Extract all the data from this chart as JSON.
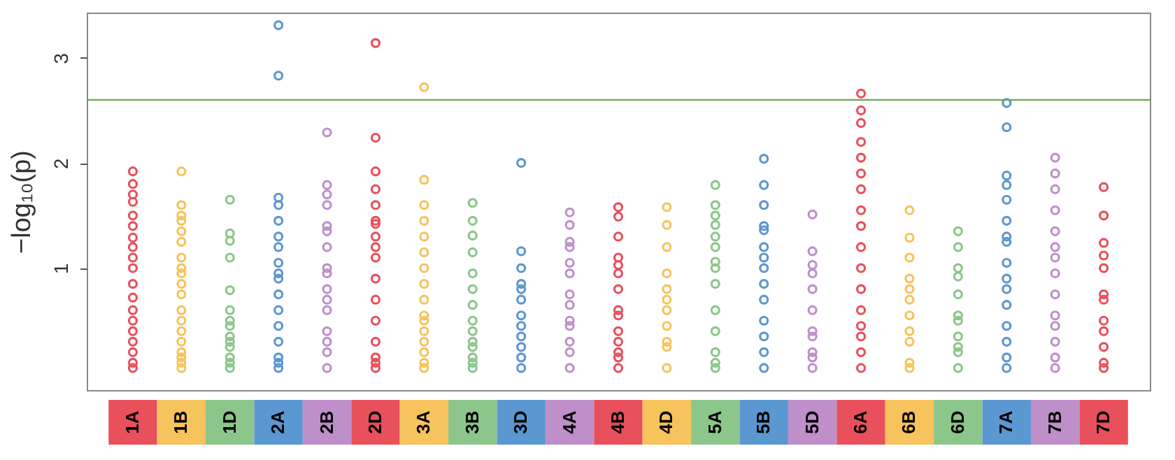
{
  "chart_data": {
    "type": "scatter",
    "ylabel": "−log₁₀(p)",
    "marker": "circle",
    "ylim": [
      -0.16,
      3.43
    ],
    "yticks": [
      1,
      2,
      3
    ],
    "categories": [
      "1A",
      "1B",
      "1D",
      "2A",
      "2B",
      "2D",
      "3A",
      "3B",
      "3D",
      "4A",
      "4B",
      "4D",
      "5A",
      "5B",
      "5D",
      "6A",
      "6B",
      "6D",
      "7A",
      "7B",
      "7D"
    ],
    "ref_lines": [
      {
        "axis": "y",
        "value": 2.6,
        "color": "#6aa84f"
      }
    ],
    "series": [
      {
        "color": "#e8505b",
        "x": [
          "1A",
          "1A",
          "1A",
          "1A",
          "1A",
          "1A",
          "1A",
          "1A",
          "1A",
          "1A",
          "1A",
          "1A",
          "1A",
          "1A",
          "1A",
          "1A",
          "1A",
          "1A",
          "1A"
        ],
        "values": [
          1.92,
          1.8,
          1.7,
          1.63,
          1.5,
          1.4,
          1.29,
          1.2,
          1.1,
          1.0,
          0.85,
          0.72,
          0.6,
          0.5,
          0.4,
          0.3,
          0.2,
          0.1,
          0.05
        ]
      },
      {
        "color": "#f7c35c",
        "x": [
          "1B",
          "1B",
          "1B",
          "1B",
          "1B",
          "1B",
          "1B",
          "1B",
          "1B",
          "1B",
          "1B",
          "1B",
          "1B",
          "1B",
          "1B",
          "1B",
          "1B",
          "1B",
          "1B"
        ],
        "values": [
          1.92,
          1.6,
          1.5,
          1.45,
          1.35,
          1.25,
          1.1,
          1.0,
          0.95,
          0.85,
          0.75,
          0.6,
          0.5,
          0.4,
          0.3,
          0.2,
          0.15,
          0.1,
          0.05
        ]
      },
      {
        "color": "#8cc68a",
        "x": [
          "1D",
          "1D",
          "1D",
          "1D",
          "1D",
          "1D",
          "1D",
          "1D",
          "1D",
          "1D",
          "1D",
          "1D",
          "1D",
          "1D"
        ],
        "values": [
          1.65,
          1.33,
          1.26,
          1.1,
          0.79,
          0.6,
          0.5,
          0.45,
          0.35,
          0.3,
          0.25,
          0.15,
          0.1,
          0.05
        ]
      },
      {
        "color": "#5b97d1",
        "x": [
          "2A",
          "2A",
          "2A",
          "2A",
          "2A",
          "2A",
          "2A",
          "2A",
          "2A",
          "2A",
          "2A",
          "2A",
          "2A",
          "2A",
          "2A",
          "2A",
          "2A"
        ],
        "values": [
          3.31,
          2.83,
          1.67,
          1.6,
          1.45,
          1.3,
          1.2,
          1.05,
          0.95,
          0.9,
          0.75,
          0.6,
          0.45,
          0.3,
          0.15,
          0.1,
          0.05
        ]
      },
      {
        "color": "#bf8fc9",
        "x": [
          "2B",
          "2B",
          "2B",
          "2B",
          "2B",
          "2B",
          "2B",
          "2B",
          "2B",
          "2B",
          "2B",
          "2B",
          "2B",
          "2B",
          "2B",
          "2B"
        ],
        "values": [
          2.29,
          1.79,
          1.7,
          1.6,
          1.4,
          1.35,
          1.2,
          1.0,
          0.95,
          0.8,
          0.7,
          0.6,
          0.4,
          0.3,
          0.2,
          0.05
        ]
      },
      {
        "color": "#e8505b",
        "x": [
          "2D",
          "2D",
          "2D",
          "2D",
          "2D",
          "2D",
          "2D",
          "2D",
          "2D",
          "2D",
          "2D",
          "2D",
          "2D",
          "2D",
          "2D",
          "2D",
          "2D"
        ],
        "values": [
          3.14,
          2.24,
          1.92,
          1.75,
          1.6,
          1.45,
          1.42,
          1.3,
          1.2,
          1.1,
          0.9,
          0.7,
          0.5,
          0.3,
          0.15,
          0.1,
          0.05
        ]
      },
      {
        "color": "#f7c35c",
        "x": [
          "3A",
          "3A",
          "3A",
          "3A",
          "3A",
          "3A",
          "3A",
          "3A",
          "3A",
          "3A",
          "3A",
          "3A",
          "3A",
          "3A",
          "3A",
          "3A"
        ],
        "values": [
          2.72,
          1.84,
          1.6,
          1.45,
          1.3,
          1.15,
          1.0,
          0.85,
          0.7,
          0.55,
          0.5,
          0.4,
          0.3,
          0.2,
          0.1,
          0.05
        ]
      },
      {
        "color": "#8cc68a",
        "x": [
          "3B",
          "3B",
          "3B",
          "3B",
          "3B",
          "3B",
          "3B",
          "3B",
          "3B",
          "3B",
          "3B",
          "3B",
          "3B",
          "3B"
        ],
        "values": [
          1.62,
          1.45,
          1.31,
          1.15,
          0.95,
          0.8,
          0.65,
          0.5,
          0.4,
          0.3,
          0.25,
          0.15,
          0.1,
          0.05
        ]
      },
      {
        "color": "#5b97d1",
        "x": [
          "3D",
          "3D",
          "3D",
          "3D",
          "3D",
          "3D",
          "3D",
          "3D",
          "3D",
          "3D",
          "3D",
          "3D"
        ],
        "values": [
          2.0,
          1.16,
          1.0,
          0.85,
          0.7,
          0.55,
          0.45,
          0.35,
          0.25,
          0.15,
          0.05,
          0.8
        ]
      },
      {
        "color": "#bf8fc9",
        "x": [
          "4A",
          "4A",
          "4A",
          "4A",
          "4A",
          "4A",
          "4A",
          "4A",
          "4A",
          "4A",
          "4A",
          "4A",
          "4A"
        ],
        "values": [
          1.53,
          1.41,
          1.25,
          1.2,
          1.05,
          0.95,
          0.75,
          0.65,
          0.5,
          0.45,
          0.3,
          0.2,
          0.05
        ]
      },
      {
        "color": "#e8505b",
        "x": [
          "4B",
          "4B",
          "4B",
          "4B",
          "4B",
          "4B",
          "4B",
          "4B",
          "4B",
          "4B",
          "4B",
          "4B",
          "4B",
          "4B"
        ],
        "values": [
          1.58,
          1.49,
          1.3,
          1.1,
          1.03,
          0.95,
          0.8,
          0.6,
          0.55,
          0.4,
          0.3,
          0.2,
          0.15,
          0.05
        ]
      },
      {
        "color": "#f7c35c",
        "x": [
          "4D",
          "4D",
          "4D",
          "4D",
          "4D",
          "4D",
          "4D",
          "4D",
          "4D",
          "4D",
          "4D"
        ],
        "values": [
          1.58,
          1.41,
          1.2,
          0.95,
          0.8,
          0.7,
          0.6,
          0.45,
          0.3,
          0.25,
          0.05
        ]
      },
      {
        "color": "#8cc68a",
        "x": [
          "5A",
          "5A",
          "5A",
          "5A",
          "5A",
          "5A",
          "5A",
          "5A",
          "5A",
          "5A",
          "5A",
          "5A",
          "5A",
          "5A"
        ],
        "values": [
          1.79,
          1.6,
          1.5,
          1.41,
          1.3,
          1.2,
          1.06,
          1.0,
          0.85,
          0.6,
          0.4,
          0.2,
          0.1,
          0.05
        ]
      },
      {
        "color": "#5b97d1",
        "x": [
          "5B",
          "5B",
          "5B",
          "5B",
          "5B",
          "5B",
          "5B",
          "5B",
          "5B",
          "5B",
          "5B",
          "5B",
          "5B",
          "5B"
        ],
        "values": [
          2.04,
          1.79,
          1.6,
          1.4,
          1.36,
          1.2,
          1.1,
          1.0,
          0.85,
          0.7,
          0.5,
          0.35,
          0.2,
          0.05
        ]
      },
      {
        "color": "#bf8fc9",
        "x": [
          "5D",
          "5D",
          "5D",
          "5D",
          "5D",
          "5D",
          "5D",
          "5D",
          "5D",
          "5D",
          "5D"
        ],
        "values": [
          1.51,
          1.16,
          1.03,
          0.95,
          0.8,
          0.6,
          0.4,
          0.35,
          0.2,
          0.15,
          0.05
        ]
      },
      {
        "color": "#e8505b",
        "x": [
          "6A",
          "6A",
          "6A",
          "6A",
          "6A",
          "6A",
          "6A",
          "6A",
          "6A",
          "6A",
          "6A",
          "6A",
          "6A",
          "6A",
          "6A",
          "6A",
          "6A"
        ],
        "values": [
          2.66,
          2.5,
          2.38,
          2.2,
          2.05,
          1.9,
          1.75,
          1.55,
          1.4,
          1.2,
          1.0,
          0.8,
          0.6,
          0.45,
          0.35,
          0.2,
          0.05
        ]
      },
      {
        "color": "#f7c35c",
        "x": [
          "6B",
          "6B",
          "6B",
          "6B",
          "6B",
          "6B",
          "6B",
          "6B",
          "6B",
          "6B",
          "6B"
        ],
        "values": [
          1.55,
          1.29,
          1.1,
          0.9,
          0.8,
          0.7,
          0.55,
          0.4,
          0.3,
          0.1,
          0.05
        ]
      },
      {
        "color": "#8cc68a",
        "x": [
          "6D",
          "6D",
          "6D",
          "6D",
          "6D",
          "6D",
          "6D",
          "6D",
          "6D",
          "6D",
          "6D"
        ],
        "values": [
          1.35,
          1.2,
          1.0,
          0.92,
          0.75,
          0.55,
          0.5,
          0.35,
          0.25,
          0.2,
          0.05
        ]
      },
      {
        "color": "#5b97d1",
        "x": [
          "7A",
          "7A",
          "7A",
          "7A",
          "7A",
          "7A",
          "7A",
          "7A",
          "7A",
          "7A",
          "7A",
          "7A",
          "7A",
          "7A",
          "7A",
          "7A"
        ],
        "values": [
          2.57,
          2.34,
          1.88,
          1.79,
          1.65,
          1.45,
          1.3,
          1.25,
          1.05,
          0.9,
          0.8,
          0.65,
          0.45,
          0.3,
          0.15,
          0.05
        ]
      },
      {
        "color": "#bf8fc9",
        "x": [
          "7B",
          "7B",
          "7B",
          "7B",
          "7B",
          "7B",
          "7B",
          "7B",
          "7B",
          "7B",
          "7B",
          "7B",
          "7B",
          "7B"
        ],
        "values": [
          2.05,
          1.9,
          1.75,
          1.55,
          1.35,
          1.2,
          1.1,
          0.95,
          0.75,
          0.55,
          0.45,
          0.3,
          0.15,
          0.05
        ]
      },
      {
        "color": "#e8505b",
        "x": [
          "7D",
          "7D",
          "7D",
          "7D",
          "7D",
          "7D",
          "7D",
          "7D",
          "7D",
          "7D",
          "7D",
          "7D"
        ],
        "values": [
          1.77,
          1.5,
          1.24,
          1.12,
          1.0,
          0.75,
          0.7,
          0.5,
          0.4,
          0.25,
          0.1,
          0.05
        ]
      }
    ]
  }
}
